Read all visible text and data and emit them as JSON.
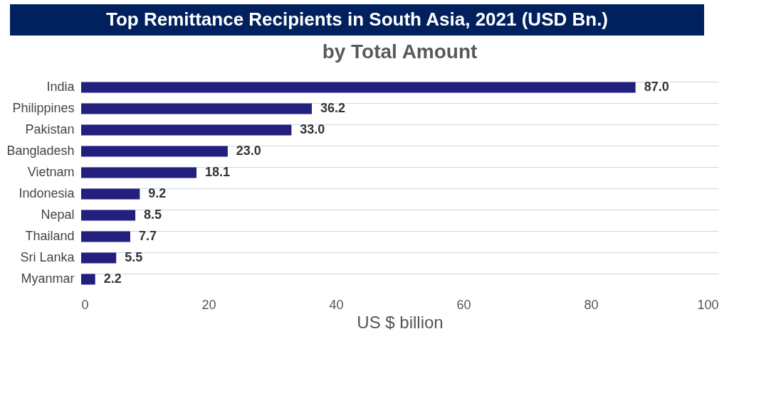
{
  "chart_data": {
    "type": "bar",
    "orientation": "horizontal",
    "title": "Top Remittance Recipients in South Asia, 2021 (USD Bn.)",
    "subtitle": "by Total Amount",
    "xlabel": "US $ billion",
    "categories": [
      "India",
      "Philippines",
      "Pakistan",
      "Bangladesh",
      "Vietnam",
      "Indonesia",
      "Nepal",
      "Thailand",
      "Sri Lanka",
      "Myanmar"
    ],
    "values": [
      87.0,
      36.2,
      33.0,
      23.0,
      18.1,
      9.2,
      8.5,
      7.7,
      5.5,
      2.2
    ],
    "color": "#231f7d",
    "xlim": [
      0,
      100
    ],
    "xticks": [
      0,
      20,
      40,
      60,
      80,
      100
    ],
    "value_labels": [
      "87.0",
      "36.2",
      "33.0",
      "23.0",
      "18.1",
      "9.2",
      "8.5",
      "7.7",
      "5.5",
      "2.2"
    ],
    "grid": "y"
  }
}
